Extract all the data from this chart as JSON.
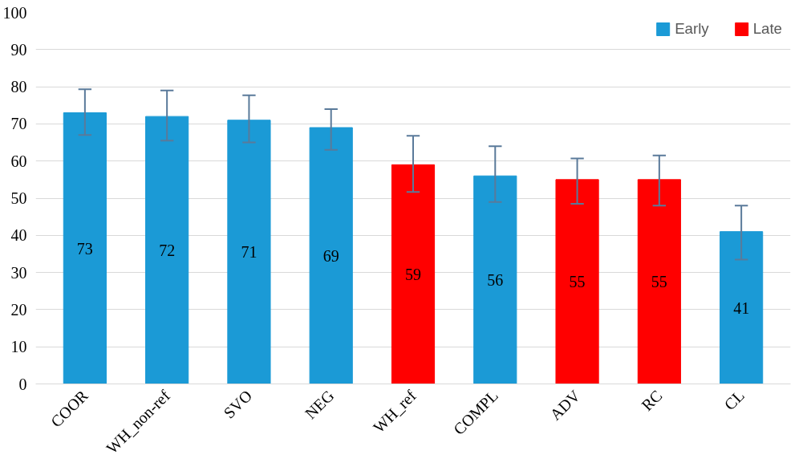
{
  "chart_data": {
    "type": "bar",
    "categories": [
      "COOR",
      "WH_non-ref",
      "SVO",
      "NEG",
      "WH_ref",
      "COMPL",
      "ADV",
      "RC",
      "CL"
    ],
    "series": [
      {
        "name": "Early",
        "color": "#1b9ad6",
        "values": [
          73,
          72,
          71,
          69,
          null,
          56,
          null,
          null,
          41
        ],
        "errors": [
          [
            67,
            79.3
          ],
          [
            65.5,
            79
          ],
          [
            65,
            77.7
          ],
          [
            63,
            74
          ],
          null,
          [
            49,
            64
          ],
          null,
          null,
          [
            33.5,
            48
          ]
        ]
      },
      {
        "name": "Late",
        "color": "#ff0000",
        "values": [
          null,
          null,
          null,
          null,
          59,
          null,
          55,
          55,
          null
        ],
        "errors": [
          null,
          null,
          null,
          null,
          [
            51.7,
            66.8
          ],
          null,
          [
            48.5,
            60.7
          ],
          [
            48,
            61.5
          ],
          null
        ]
      }
    ],
    "ylim": [
      0,
      100
    ],
    "yticks": [
      0,
      10,
      20,
      30,
      40,
      50,
      60,
      70,
      80,
      90,
      100
    ],
    "grid": "y",
    "legend": "top right",
    "data_labels": true
  }
}
